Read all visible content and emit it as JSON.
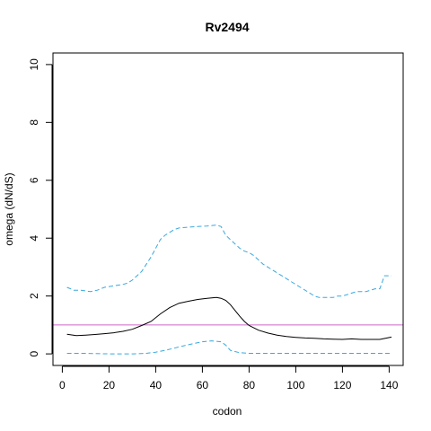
{
  "chart_data": {
    "type": "line",
    "title": "Rv2494",
    "xlabel": "codon",
    "ylabel": "omega (dN/dS)",
    "xlim": [
      -4,
      146
    ],
    "ylim": [
      -0.4,
      10.4
    ],
    "xticks": [
      0,
      20,
      40,
      60,
      80,
      100,
      120,
      140
    ],
    "yticks": [
      0,
      2,
      4,
      6,
      8,
      10
    ],
    "grid": false,
    "reference_line": {
      "y": 1,
      "color": "#cc66cc"
    },
    "series": [
      {
        "style": "upper-bound",
        "color": "#38a8e0",
        "dash": true,
        "x": [
          2,
          5,
          8,
          12,
          15,
          18,
          22,
          26,
          28,
          30,
          32,
          34,
          36,
          38,
          40,
          42,
          44,
          46,
          48,
          50,
          54,
          58,
          62,
          66,
          68,
          70,
          72,
          74,
          76,
          78,
          80,
          82,
          84,
          86,
          88,
          90,
          92,
          94,
          96,
          98,
          100,
          102,
          104,
          106,
          108,
          110,
          112,
          114,
          116,
          118,
          120,
          122,
          124,
          126,
          128,
          130,
          132,
          134,
          136,
          138,
          141
        ],
        "y": [
          2.3,
          2.2,
          2.2,
          2.15,
          2.2,
          2.3,
          2.35,
          2.4,
          2.45,
          2.55,
          2.7,
          2.85,
          3.1,
          3.35,
          3.65,
          3.95,
          4.1,
          4.2,
          4.3,
          4.35,
          4.38,
          4.4,
          4.42,
          4.45,
          4.4,
          4.1,
          3.95,
          3.8,
          3.65,
          3.55,
          3.5,
          3.4,
          3.25,
          3.1,
          3.0,
          2.9,
          2.8,
          2.7,
          2.6,
          2.5,
          2.4,
          2.3,
          2.2,
          2.1,
          2.0,
          1.95,
          1.95,
          1.95,
          1.95,
          2.0,
          2.0,
          2.05,
          2.1,
          2.15,
          2.15,
          2.15,
          2.2,
          2.25,
          2.25,
          2.7,
          2.7
        ]
      },
      {
        "style": "mean",
        "color": "#000000",
        "dash": false,
        "x": [
          2,
          6,
          10,
          14,
          18,
          22,
          26,
          30,
          34,
          38,
          42,
          46,
          50,
          54,
          58,
          62,
          66,
          68,
          70,
          72,
          74,
          76,
          78,
          80,
          84,
          88,
          92,
          96,
          100,
          104,
          108,
          112,
          116,
          120,
          124,
          128,
          132,
          136,
          141
        ],
        "y": [
          0.68,
          0.63,
          0.65,
          0.67,
          0.7,
          0.73,
          0.78,
          0.85,
          0.98,
          1.12,
          1.38,
          1.6,
          1.75,
          1.82,
          1.88,
          1.92,
          1.95,
          1.92,
          1.85,
          1.7,
          1.5,
          1.3,
          1.12,
          0.98,
          0.82,
          0.72,
          0.65,
          0.6,
          0.57,
          0.55,
          0.54,
          0.52,
          0.51,
          0.5,
          0.52,
          0.5,
          0.5,
          0.5,
          0.58
        ]
      },
      {
        "style": "lower-bound",
        "color": "#38a8e0",
        "dash": true,
        "x": [
          2,
          10,
          20,
          30,
          36,
          40,
          44,
          48,
          52,
          56,
          60,
          64,
          68,
          70,
          72,
          76,
          80,
          90,
          100,
          110,
          120,
          130,
          141
        ],
        "y": [
          0.02,
          0.02,
          0.0,
          0.0,
          0.02,
          0.06,
          0.12,
          0.2,
          0.28,
          0.35,
          0.42,
          0.45,
          0.42,
          0.3,
          0.12,
          0.04,
          0.02,
          0.02,
          0.02,
          0.02,
          0.02,
          0.02,
          0.02
        ]
      }
    ]
  }
}
